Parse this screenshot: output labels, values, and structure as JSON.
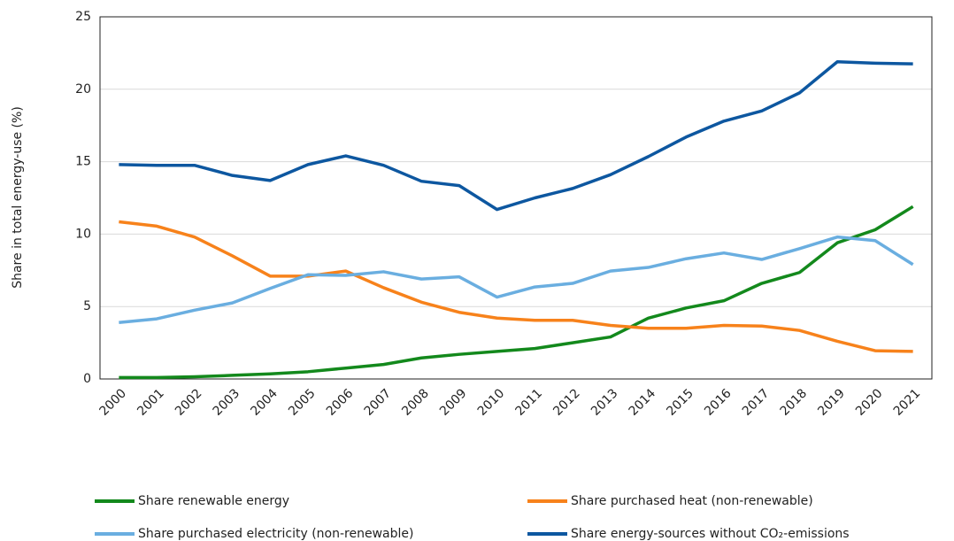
{
  "chart_data": {
    "type": "line",
    "y_label": "Share in total energy-use (%)",
    "categories": [
      "2000",
      "2001",
      "2002",
      "2003",
      "2004",
      "2005",
      "2006",
      "2007",
      "2008",
      "2009",
      "2010",
      "2011",
      "2012",
      "2013",
      "2014",
      "2015",
      "2016",
      "2017",
      "2018",
      "2019",
      "2020",
      "2021"
    ],
    "series": [
      {
        "name": "Share renewable energy",
        "color": "#13891c",
        "values": [
          0.1,
          0.1,
          0.15,
          0.25,
          0.35,
          0.5,
          0.75,
          1.0,
          1.45,
          1.7,
          1.9,
          2.1,
          2.5,
          2.9,
          4.2,
          4.9,
          5.4,
          6.6,
          7.35,
          9.4,
          10.3,
          11.9
        ]
      },
      {
        "name": "Share purchased heat (non-renewable)",
        "color": "#f7821b",
        "values": [
          10.85,
          10.55,
          9.8,
          8.5,
          7.1,
          7.1,
          7.45,
          6.3,
          5.3,
          4.6,
          4.2,
          4.05,
          4.05,
          3.7,
          3.5,
          3.5,
          3.7,
          3.65,
          3.35,
          2.6,
          1.95,
          1.9
        ]
      },
      {
        "name": "Share purchased electricity (non-renewable)",
        "color": "#6aaee0",
        "values": [
          3.9,
          4.15,
          4.75,
          5.25,
          6.25,
          7.2,
          7.15,
          7.4,
          6.9,
          7.05,
          5.65,
          6.35,
          6.6,
          7.45,
          7.7,
          8.3,
          8.7,
          8.25,
          9.0,
          9.8,
          9.55,
          7.9
        ]
      },
      {
        "name": "Share energy-sources without CO₂-emissions",
        "color": "#0d57a0",
        "values": [
          14.8,
          14.75,
          14.75,
          14.05,
          13.7,
          14.8,
          15.4,
          14.75,
          13.65,
          13.35,
          11.7,
          12.5,
          13.15,
          14.1,
          15.35,
          16.7,
          17.8,
          18.5,
          19.75,
          21.9,
          21.8,
          21.75
        ]
      }
    ],
    "ylim": [
      0,
      25
    ],
    "yticks": [
      0,
      5,
      10,
      15,
      20,
      25
    ],
    "grid": true
  }
}
